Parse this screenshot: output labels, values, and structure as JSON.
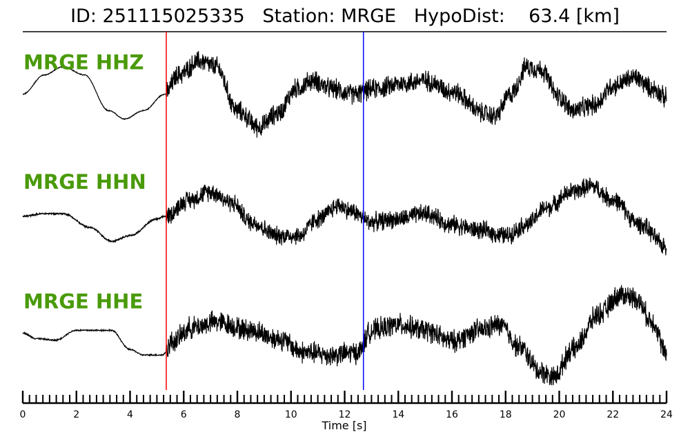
{
  "header": {
    "title": "ID: 251115025335   Station: MRGE   HypoDist:    63.4 [km]"
  },
  "chart_data": {
    "type": "line",
    "xlabel": "Time [s]",
    "xlim": [
      0,
      24
    ],
    "xticks": [
      0,
      2,
      4,
      6,
      8,
      10,
      12,
      14,
      16,
      18,
      20,
      22,
      24
    ],
    "minor_tick_step": 0.25,
    "trace_color": "#000000",
    "label_color": "#4a9a0a",
    "picks": [
      {
        "time": 5.35,
        "color": "#ff0000"
      },
      {
        "time": 12.7,
        "color": "#0000ff"
      }
    ],
    "series": [
      {
        "name": "MRGE HHZ",
        "noise_pre": 0.01,
        "noise_post": 0.22,
        "envelope": [
          [
            0,
            -0.05
          ],
          [
            0.8,
            0.3
          ],
          [
            1.5,
            0.45
          ],
          [
            2.3,
            0.3
          ],
          [
            3.2,
            -0.35
          ],
          [
            3.8,
            -0.5
          ],
          [
            4.5,
            -0.35
          ],
          [
            5.3,
            -0.05
          ],
          [
            5.8,
            0.3
          ],
          [
            6.6,
            0.55
          ],
          [
            7.2,
            0.45
          ],
          [
            8.0,
            -0.35
          ],
          [
            8.8,
            -0.65
          ],
          [
            9.5,
            -0.4
          ],
          [
            10.2,
            0.05
          ],
          [
            10.8,
            0.2
          ],
          [
            11.5,
            0.05
          ],
          [
            12.3,
            -0.05
          ],
          [
            13.2,
            0.05
          ],
          [
            14.2,
            0.15
          ],
          [
            15.0,
            0.2
          ],
          [
            16.0,
            0.0
          ],
          [
            17.2,
            -0.4
          ],
          [
            17.6,
            -0.45
          ],
          [
            18.2,
            -0.05
          ],
          [
            18.8,
            0.45
          ],
          [
            19.3,
            0.4
          ],
          [
            20.0,
            -0.1
          ],
          [
            20.5,
            -0.35
          ],
          [
            21.3,
            -0.25
          ],
          [
            22.0,
            0.1
          ],
          [
            22.8,
            0.25
          ],
          [
            23.5,
            0.05
          ],
          [
            24.0,
            -0.12
          ]
        ]
      },
      {
        "name": "MRGE HHN",
        "noise_pre": 0.02,
        "noise_post": 0.2,
        "envelope": [
          [
            0,
            -0.1
          ],
          [
            0.8,
            -0.05
          ],
          [
            1.5,
            -0.05
          ],
          [
            2.5,
            -0.3
          ],
          [
            3.3,
            -0.55
          ],
          [
            4.0,
            -0.45
          ],
          [
            5.0,
            -0.15
          ],
          [
            5.3,
            -0.1
          ],
          [
            6.2,
            0.2
          ],
          [
            7.0,
            0.35
          ],
          [
            7.8,
            0.15
          ],
          [
            8.5,
            -0.2
          ],
          [
            9.5,
            -0.45
          ],
          [
            10.3,
            -0.45
          ],
          [
            11.0,
            -0.15
          ],
          [
            11.8,
            0.1
          ],
          [
            12.2,
            0.0
          ],
          [
            13.0,
            -0.2
          ],
          [
            14.0,
            -0.15
          ],
          [
            15.0,
            -0.05
          ],
          [
            16.0,
            -0.25
          ],
          [
            17.0,
            -0.35
          ],
          [
            18.0,
            -0.45
          ],
          [
            18.8,
            -0.25
          ],
          [
            19.5,
            0.05
          ],
          [
            20.5,
            0.35
          ],
          [
            21.2,
            0.45
          ],
          [
            22.0,
            0.2
          ],
          [
            23.0,
            -0.25
          ],
          [
            24.0,
            -0.65
          ]
        ]
      },
      {
        "name": "MRGE HHE",
        "noise_pre": 0.015,
        "noise_post": 0.24,
        "envelope": [
          [
            0,
            -0.05
          ],
          [
            0.5,
            -0.15
          ],
          [
            1.2,
            -0.18
          ],
          [
            2.0,
            0.0
          ],
          [
            2.8,
            0.0
          ],
          [
            3.3,
            0.0
          ],
          [
            4.0,
            -0.35
          ],
          [
            4.5,
            -0.45
          ],
          [
            5.2,
            -0.45
          ],
          [
            5.6,
            -0.2
          ],
          [
            6.3,
            0.05
          ],
          [
            7.2,
            0.15
          ],
          [
            8.5,
            0.0
          ],
          [
            9.5,
            -0.15
          ],
          [
            10.5,
            -0.4
          ],
          [
            11.5,
            -0.45
          ],
          [
            12.5,
            -0.4
          ],
          [
            13.0,
            0.0
          ],
          [
            14.0,
            0.1
          ],
          [
            15.0,
            0.0
          ],
          [
            16.0,
            -0.2
          ],
          [
            17.0,
            0.0
          ],
          [
            17.8,
            0.1
          ],
          [
            18.5,
            -0.3
          ],
          [
            19.3,
            -0.75
          ],
          [
            19.8,
            -0.85
          ],
          [
            20.5,
            -0.35
          ],
          [
            21.5,
            0.3
          ],
          [
            22.3,
            0.65
          ],
          [
            22.8,
            0.6
          ],
          [
            23.5,
            0.15
          ],
          [
            24.0,
            -0.45
          ]
        ]
      }
    ]
  }
}
